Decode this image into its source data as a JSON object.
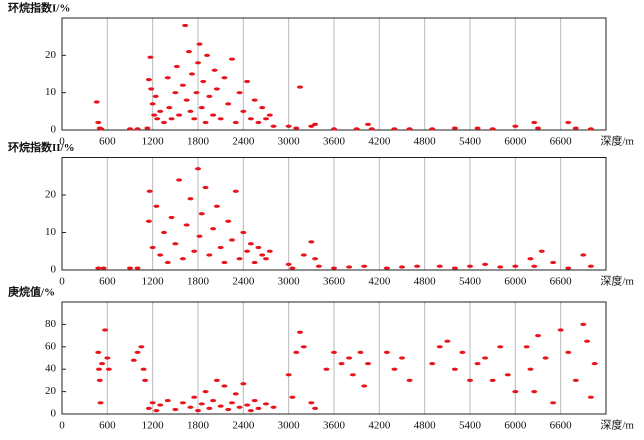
{
  "chart_data": [
    {
      "type": "scatter",
      "title": "环烷指数I/%",
      "x_label": "深度/m",
      "color": "#e8141c",
      "grid": "x",
      "xlim": [
        0,
        7200
      ],
      "xticks": [
        0,
        600,
        1200,
        1800,
        2400,
        3000,
        3600,
        4200,
        4800,
        5400,
        6000,
        6600
      ],
      "ylim": [
        0,
        30
      ],
      "yticks": [
        0,
        10,
        20
      ],
      "x": [
        460,
        480,
        500,
        520,
        900,
        1000,
        1130,
        1150,
        1170,
        1180,
        1200,
        1220,
        1240,
        1260,
        1300,
        1350,
        1400,
        1420,
        1450,
        1500,
        1520,
        1550,
        1600,
        1630,
        1650,
        1680,
        1700,
        1720,
        1750,
        1780,
        1800,
        1820,
        1850,
        1870,
        1900,
        1920,
        1950,
        2000,
        2020,
        2050,
        2100,
        2150,
        2200,
        2250,
        2300,
        2350,
        2400,
        2450,
        2500,
        2550,
        2600,
        2650,
        2700,
        2750,
        2800,
        3000,
        3100,
        3150,
        3300,
        3350,
        3600,
        3900,
        4050,
        4100,
        4400,
        4600,
        4900,
        5200,
        5500,
        5700,
        6000,
        6250,
        6300,
        6700,
        6800,
        7000
      ],
      "values": [
        7.5,
        2,
        0.5,
        0.3,
        0.3,
        0.3,
        0.5,
        13.5,
        19.5,
        11,
        7,
        4,
        9,
        3,
        5,
        2,
        14,
        6,
        3,
        10,
        17,
        4,
        12,
        28,
        8,
        21,
        5,
        15,
        3,
        10,
        18,
        23,
        6,
        13,
        2,
        20,
        9,
        4,
        16,
        11,
        3,
        14,
        7,
        19,
        2,
        10,
        5,
        13,
        3,
        8,
        2,
        6,
        3,
        4,
        1,
        1,
        0.5,
        11.5,
        1,
        1.5,
        0.3,
        0.3,
        1.5,
        0.3,
        0.3,
        0.3,
        0.3,
        0.5,
        0.5,
        0.3,
        1,
        2,
        0.5,
        2,
        0.5,
        0.3
      ]
    },
    {
      "type": "scatter",
      "title": "环烷指数II/%",
      "x_label": "深度/m",
      "color": "#e8141c",
      "grid": "x",
      "xlim": [
        0,
        7200
      ],
      "xticks": [
        0,
        600,
        1200,
        1800,
        2400,
        3000,
        3600,
        4200,
        4800,
        5400,
        6000,
        6600
      ],
      "ylim": [
        0,
        30
      ],
      "yticks": [
        0,
        10,
        20
      ],
      "x": [
        480,
        550,
        900,
        1000,
        1150,
        1160,
        1200,
        1250,
        1300,
        1350,
        1400,
        1450,
        1500,
        1550,
        1600,
        1650,
        1700,
        1750,
        1800,
        1820,
        1850,
        1900,
        1950,
        2000,
        2050,
        2100,
        2150,
        2200,
        2250,
        2300,
        2350,
        2400,
        2450,
        2500,
        2550,
        2600,
        2650,
        2700,
        2750,
        3000,
        3050,
        3200,
        3300,
        3350,
        3400,
        3600,
        3800,
        4000,
        4300,
        4500,
        4700,
        5000,
        5200,
        5400,
        5600,
        5800,
        6000,
        6200,
        6250,
        6350,
        6500,
        6700,
        6900,
        7000
      ],
      "values": [
        0.5,
        0.5,
        0.5,
        0.5,
        13,
        21,
        6,
        17,
        4,
        10,
        2,
        14,
        7,
        24,
        3,
        12,
        19,
        5,
        27,
        9,
        15,
        22,
        4,
        11,
        17,
        6,
        2,
        13,
        8,
        21,
        3,
        10,
        5,
        7,
        2,
        6,
        4,
        3,
        5,
        1.5,
        0.5,
        4,
        7.5,
        3,
        1,
        0.5,
        0.8,
        1,
        0.5,
        0.8,
        1,
        1,
        0.5,
        1,
        1.5,
        0.8,
        1,
        3,
        1,
        5,
        2,
        0.5,
        4,
        1
      ]
    },
    {
      "type": "scatter",
      "title": "庚烷值/%",
      "x_label": "深度/m",
      "color": "#e8141c",
      "grid": "x",
      "xlim": [
        0,
        7200
      ],
      "xticks": [
        0,
        600,
        1200,
        1800,
        2400,
        3000,
        3600,
        4200,
        4800,
        5400,
        6000,
        6600
      ],
      "ylim": [
        0,
        100
      ],
      "yticks": [
        0,
        20,
        40,
        60,
        80
      ],
      "x": [
        480,
        490,
        500,
        510,
        530,
        570,
        600,
        620,
        950,
        1000,
        1050,
        1080,
        1100,
        1150,
        1200,
        1250,
        1300,
        1400,
        1500,
        1600,
        1700,
        1750,
        1800,
        1850,
        1900,
        1950,
        2000,
        2050,
        2100,
        2150,
        2200,
        2250,
        2300,
        2350,
        2400,
        2450,
        2500,
        2550,
        2600,
        2700,
        2800,
        3000,
        3050,
        3100,
        3150,
        3200,
        3300,
        3350,
        3500,
        3600,
        3700,
        3800,
        3850,
        3950,
        4000,
        4050,
        4300,
        4400,
        4500,
        4600,
        4900,
        5000,
        5100,
        5200,
        5300,
        5400,
        5500,
        5600,
        5700,
        5800,
        5900,
        6000,
        6150,
        6200,
        6250,
        6300,
        6400,
        6500,
        6600,
        6700,
        6800,
        6900,
        6950,
        7000,
        7050
      ],
      "values": [
        55,
        40,
        30,
        10,
        45,
        75,
        50,
        40,
        48,
        55,
        60,
        40,
        30,
        5,
        10,
        3,
        8,
        12,
        4,
        10,
        6,
        15,
        3,
        9,
        20,
        5,
        12,
        30,
        7,
        25,
        4,
        10,
        18,
        6,
        27,
        8,
        3,
        12,
        5,
        9,
        6,
        35,
        15,
        55,
        73,
        60,
        10,
        5,
        40,
        55,
        45,
        50,
        35,
        55,
        25,
        45,
        55,
        40,
        50,
        30,
        45,
        60,
        65,
        40,
        55,
        30,
        45,
        50,
        30,
        60,
        35,
        20,
        60,
        40,
        20,
        70,
        50,
        10,
        75,
        55,
        30,
        80,
        65,
        15,
        45
      ]
    }
  ]
}
